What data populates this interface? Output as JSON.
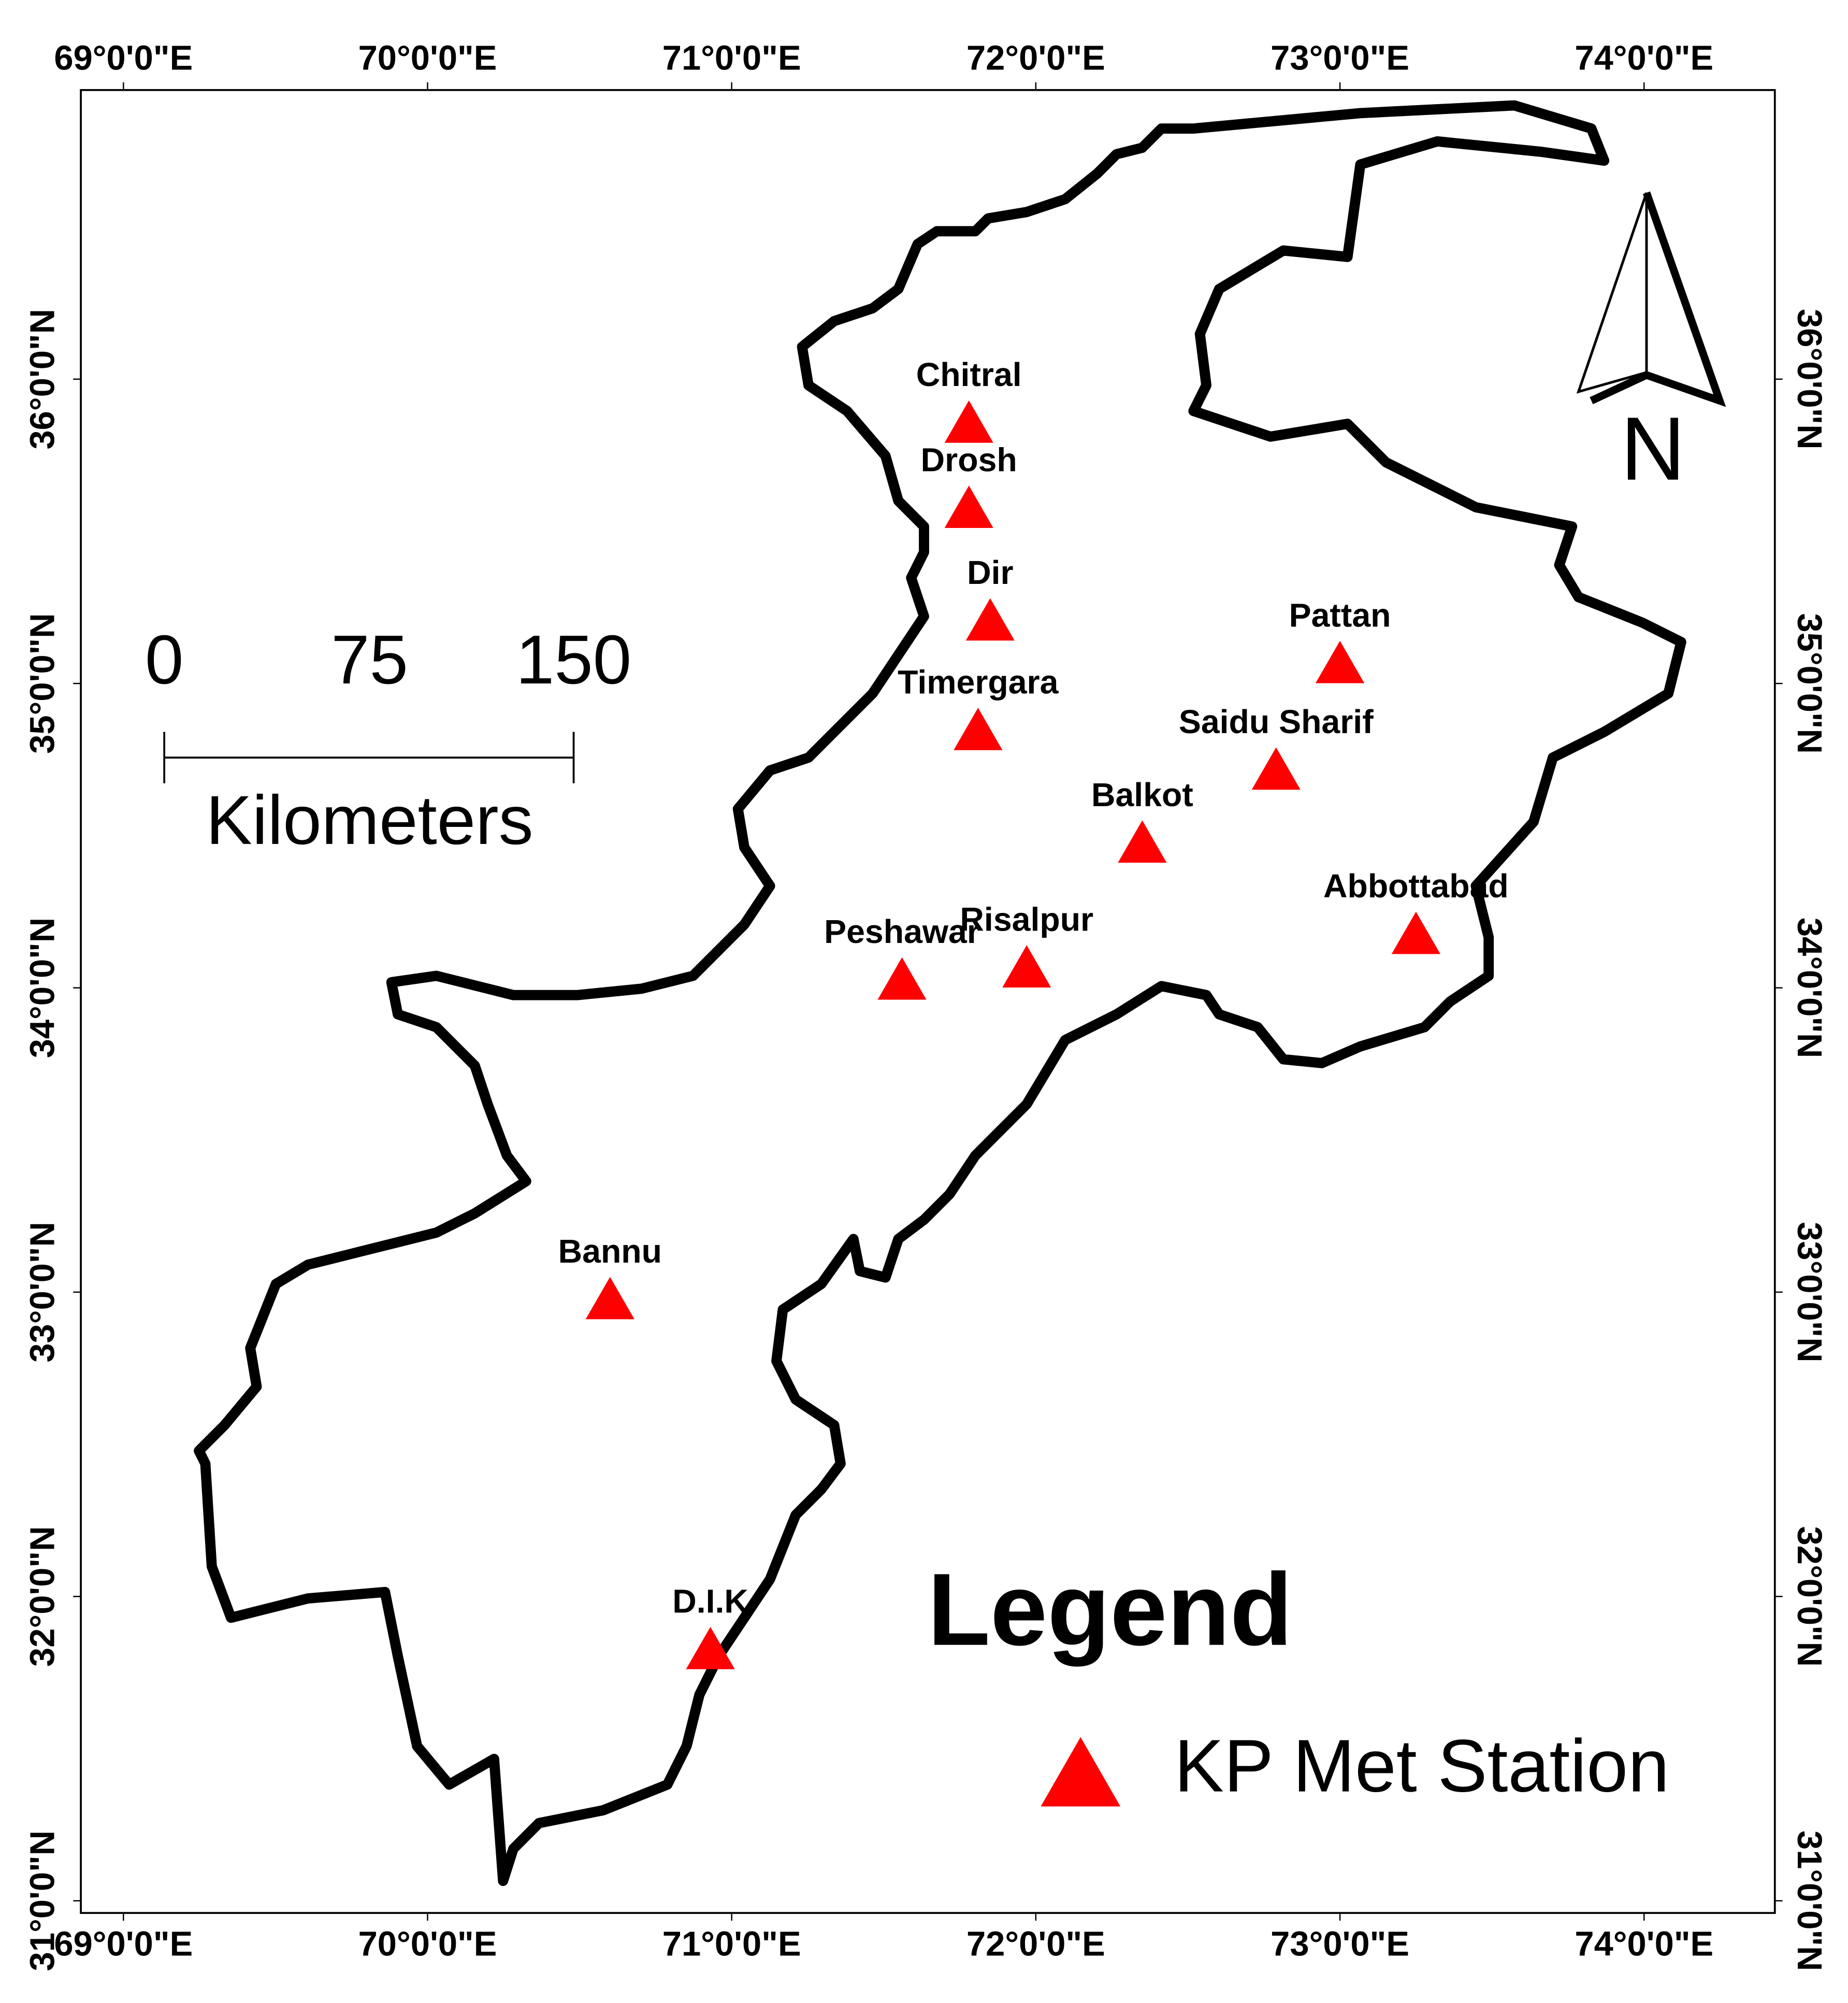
{
  "chart_data": {
    "type": "scatter",
    "xlim": [
      68.86,
      74.43
    ],
    "ylim": [
      30.96,
      36.95
    ],
    "xticks": [
      {
        "value": 69,
        "label": "69°0'0\"E"
      },
      {
        "value": 70,
        "label": "70°0'0\"E"
      },
      {
        "value": 71,
        "label": "71°0'0\"E"
      },
      {
        "value": 72,
        "label": "72°0'0\"E"
      },
      {
        "value": 73,
        "label": "73°0'0\"E"
      },
      {
        "value": 74,
        "label": "74°0'0\"E"
      }
    ],
    "yticks": [
      {
        "value": 31,
        "label": "31°0'0\"N"
      },
      {
        "value": 32,
        "label": "32°0'0\"N"
      },
      {
        "value": 33,
        "label": "33°0'0\"N"
      },
      {
        "value": 34,
        "label": "34°0'0\"N"
      },
      {
        "value": 35,
        "label": "35°0'0\"N"
      },
      {
        "value": 36,
        "label": "36°0'0\"N"
      }
    ],
    "series": [
      {
        "name": "KP Met Station",
        "color": "#ff0000",
        "labels": [
          "Chitral",
          "Drosh",
          "Dir",
          "Timergara",
          "Pattan",
          "Saidu Sharif",
          "Balkot",
          "Abbottabad",
          "Risalpur",
          "Peshawar",
          "Bannu",
          "D.I.K"
        ],
        "x": [
          71.78,
          71.78,
          71.85,
          71.81,
          73.0,
          72.79,
          72.35,
          73.25,
          71.97,
          71.56,
          70.6,
          70.93
        ],
        "values": [
          35.85,
          35.57,
          35.2,
          34.84,
          35.06,
          34.71,
          34.47,
          34.17,
          34.06,
          34.02,
          32.97,
          31.82
        ]
      }
    ],
    "legend_title": "Legend",
    "north_label": "N",
    "scale_bar": {
      "labels": [
        "0",
        "75",
        "150"
      ],
      "unit": "Kilometers"
    }
  }
}
